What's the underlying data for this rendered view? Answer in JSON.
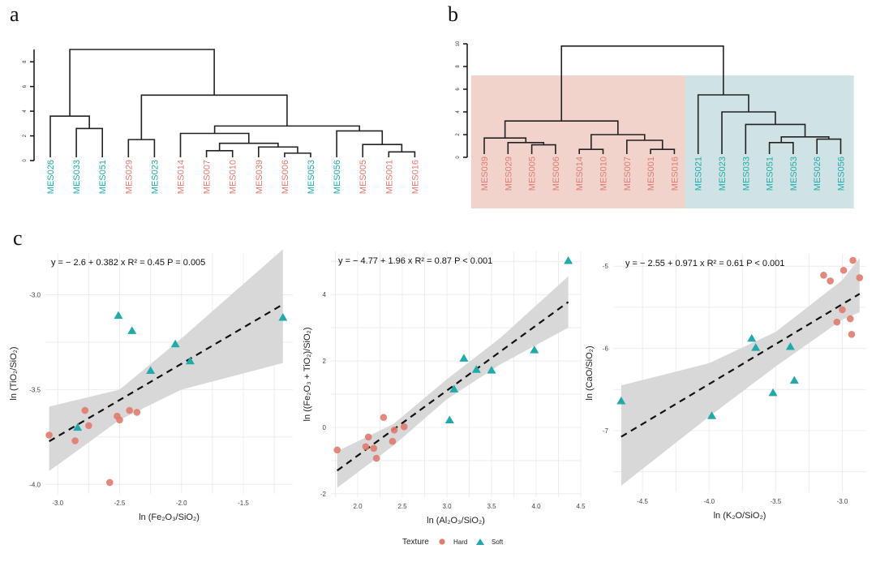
{
  "colors": {
    "hard": "#e07b6f",
    "soft": "#22aaaa",
    "ribbon": "#d6d6d6",
    "grid": "#ececec",
    "cluster_hard_bg": "#f1d3cc",
    "cluster_soft_bg": "#cfe3e5"
  },
  "panels": {
    "a": "a",
    "b": "b",
    "c": "c"
  },
  "chart_data": [
    {
      "id": "a",
      "type": "dendrogram",
      "yticks": [
        "0",
        "2",
        "4",
        "6",
        "8"
      ],
      "ylim": [
        0,
        9
      ],
      "leaves": [
        {
          "label": "MES026",
          "group": "soft"
        },
        {
          "label": "MES033",
          "group": "soft"
        },
        {
          "label": "MES051",
          "group": "soft"
        },
        {
          "label": "MES029",
          "group": "hard"
        },
        {
          "label": "MES023",
          "group": "soft"
        },
        {
          "label": "MES014",
          "group": "hard"
        },
        {
          "label": "MES007",
          "group": "hard"
        },
        {
          "label": "MES010",
          "group": "hard"
        },
        {
          "label": "MES039",
          "group": "hard"
        },
        {
          "label": "MES006",
          "group": "hard"
        },
        {
          "label": "MES053",
          "group": "soft"
        },
        {
          "label": "MES056",
          "group": "soft"
        },
        {
          "label": "MES005",
          "group": "hard"
        },
        {
          "label": "MES001",
          "group": "hard"
        },
        {
          "label": "MES016",
          "group": "hard"
        }
      ],
      "merges": [
        {
          "a": 1,
          "b": 2,
          "h": 2.6
        },
        {
          "a": 0,
          "b": "m0",
          "h": 3.6
        },
        {
          "a": 3,
          "b": 4,
          "h": 1.7
        },
        {
          "a": 6,
          "b": 7,
          "h": 0.8
        },
        {
          "a": 9,
          "b": 10,
          "h": 0.6
        },
        {
          "a": 8,
          "b": "m4",
          "h": 1.1
        },
        {
          "a": "m3",
          "b": "m5",
          "h": 1.4
        },
        {
          "a": 5,
          "b": "m6",
          "h": 2.2
        },
        {
          "a": 13,
          "b": 14,
          "h": 0.7
        },
        {
          "a": 12,
          "b": "m8",
          "h": 1.3
        },
        {
          "a": 11,
          "b": "m9",
          "h": 2.4
        },
        {
          "a": "m7",
          "b": "m10",
          "h": 2.8
        },
        {
          "a": "m2",
          "b": "m11",
          "h": 5.3
        },
        {
          "a": "m1",
          "b": "m12",
          "h": 9.0
        }
      ]
    },
    {
      "id": "b",
      "type": "dendrogram",
      "yticks": [
        "0",
        "2",
        "4",
        "6",
        "8",
        "10"
      ],
      "ylim": [
        0,
        10
      ],
      "clusters": [
        {
          "group": "hard",
          "from": 0,
          "to": 8
        },
        {
          "group": "soft",
          "from": 9,
          "to": 15
        }
      ],
      "leaves": [
        {
          "label": "MES039",
          "group": "hard"
        },
        {
          "label": "MES029",
          "group": "hard"
        },
        {
          "label": "MES005",
          "group": "hard"
        },
        {
          "label": "MES006",
          "group": "hard"
        },
        {
          "label": "MES014",
          "group": "hard"
        },
        {
          "label": "MES010",
          "group": "hard"
        },
        {
          "label": "MES007",
          "group": "hard"
        },
        {
          "label": "MES001",
          "group": "hard"
        },
        {
          "label": "MES016",
          "group": "hard"
        },
        {
          "label": "MES021",
          "group": "soft"
        },
        {
          "label": "MES023",
          "group": "soft"
        },
        {
          "label": "MES033",
          "group": "soft"
        },
        {
          "label": "MES051",
          "group": "soft"
        },
        {
          "label": "MES053",
          "group": "soft"
        },
        {
          "label": "MES026",
          "group": "soft"
        },
        {
          "label": "MES056",
          "group": "soft"
        }
      ],
      "merges": [
        {
          "a": 2,
          "b": 3,
          "h": 1.1
        },
        {
          "a": 1,
          "b": "m0",
          "h": 1.3
        },
        {
          "a": 0,
          "b": "m1",
          "h": 1.7
        },
        {
          "a": 4,
          "b": 5,
          "h": 0.7
        },
        {
          "a": 7,
          "b": 8,
          "h": 0.7
        },
        {
          "a": 6,
          "b": "m4",
          "h": 1.5
        },
        {
          "a": "m3",
          "b": "m5",
          "h": 2.0
        },
        {
          "a": "m2",
          "b": "m6",
          "h": 3.2
        },
        {
          "a": 12,
          "b": 13,
          "h": 1.3
        },
        {
          "a": 14,
          "b": 15,
          "h": 1.6
        },
        {
          "a": "m8",
          "b": "m9",
          "h": 1.8
        },
        {
          "a": 11,
          "b": "m10",
          "h": 2.9
        },
        {
          "a": 10,
          "b": "m11",
          "h": 4.0
        },
        {
          "a": 9,
          "b": "m12",
          "h": 5.5
        },
        {
          "a": "m7",
          "b": "m13",
          "h": 9.8
        }
      ]
    },
    {
      "id": "c1",
      "type": "scatter",
      "equation": "y = − 2.6 + 0.382 x   R² = 0.45   P = 0.005",
      "xlabel": "ln (Fe₂O₃/SiO₂)",
      "ylabel": "ln (TiO₂/SiO₂)",
      "xlim": [
        -3.1,
        -1.1
      ],
      "ylim": [
        -4.05,
        -2.78
      ],
      "xticks": [
        -3.0,
        -2.5,
        -2.0,
        -1.5
      ],
      "xtick_labels": [
        "-3.0",
        "-2.5",
        "-2.0",
        "-1.5"
      ],
      "yticks": [
        -4.0,
        -3.5,
        -3.0
      ],
      "ytick_labels": [
        "-4.0",
        "-3.5",
        "-3.0"
      ],
      "fit": {
        "intercept": -2.6,
        "slope": 0.382,
        "x_range": [
          -3.07,
          -1.18
        ],
        "ribbon_lo": [
          [
            -3.07,
            -3.93
          ],
          [
            -2.5,
            -3.66
          ],
          [
            -2.0,
            -3.5
          ],
          [
            -1.18,
            -3.36
          ]
        ],
        "ribbon_hi": [
          [
            -3.07,
            -3.59
          ],
          [
            -2.5,
            -3.5
          ],
          [
            -2.0,
            -3.23
          ],
          [
            -1.18,
            -2.76
          ]
        ]
      },
      "points": [
        {
          "x": -2.51,
          "y": -3.11,
          "group": "soft"
        },
        {
          "x": -2.4,
          "y": -3.19,
          "group": "soft"
        },
        {
          "x": -2.05,
          "y": -3.26,
          "group": "soft"
        },
        {
          "x": -1.93,
          "y": -3.35,
          "group": "soft"
        },
        {
          "x": -2.25,
          "y": -3.4,
          "group": "soft"
        },
        {
          "x": -1.18,
          "y": -3.12,
          "group": "soft"
        },
        {
          "x": -2.84,
          "y": -3.7,
          "group": "soft"
        },
        {
          "x": -3.07,
          "y": -3.74,
          "group": "hard"
        },
        {
          "x": -2.86,
          "y": -3.77,
          "group": "hard"
        },
        {
          "x": -2.78,
          "y": -3.61,
          "group": "hard"
        },
        {
          "x": -2.75,
          "y": -3.69,
          "group": "hard"
        },
        {
          "x": -2.52,
          "y": -3.64,
          "group": "hard"
        },
        {
          "x": -2.5,
          "y": -3.66,
          "group": "hard"
        },
        {
          "x": -2.42,
          "y": -3.61,
          "group": "hard"
        },
        {
          "x": -2.36,
          "y": -3.62,
          "group": "hard"
        },
        {
          "x": -2.58,
          "y": -3.99,
          "group": "hard"
        }
      ]
    },
    {
      "id": "c2",
      "type": "scatter",
      "equation": "y = − 4.77 + 1.96 x   R² = 0.87   P < 0.001",
      "xlabel": "ln (Al₂O₃/SiO₂)",
      "ylabel": "ln ((Fe₂O₃ + TiO₂)/SiO₂)",
      "xlim": [
        1.7,
        4.5
      ],
      "ylim": [
        -2.1,
        5.3
      ],
      "xticks": [
        2.0,
        2.5,
        3.0,
        3.5,
        4.0,
        4.5
      ],
      "xtick_labels": [
        "2.0",
        "2.5",
        "3.0",
        "3.5",
        "4.0",
        "4.5"
      ],
      "yticks": [
        -2,
        0,
        2,
        4
      ],
      "ytick_labels": [
        "-2",
        "0",
        "2",
        "4"
      ],
      "fit": {
        "intercept": -4.77,
        "slope": 1.96,
        "x_range": [
          1.77,
          4.36
        ],
        "ribbon_lo": [
          [
            1.77,
            -1.82
          ],
          [
            2.4,
            -0.55
          ],
          [
            3.0,
            0.85
          ],
          [
            3.6,
            1.9
          ],
          [
            4.36,
            3.0
          ]
        ],
        "ribbon_hi": [
          [
            1.77,
            -0.72
          ],
          [
            2.4,
            0.1
          ],
          [
            3.0,
            1.45
          ],
          [
            3.6,
            2.7
          ],
          [
            4.36,
            4.55
          ]
        ]
      },
      "points": [
        {
          "x": 1.77,
          "y": -0.68,
          "group": "hard"
        },
        {
          "x": 2.29,
          "y": 0.3,
          "group": "hard"
        },
        {
          "x": 2.12,
          "y": -0.29,
          "group": "hard"
        },
        {
          "x": 2.09,
          "y": -0.58,
          "group": "hard"
        },
        {
          "x": 2.18,
          "y": -0.63,
          "group": "hard"
        },
        {
          "x": 2.21,
          "y": -0.93,
          "group": "hard"
        },
        {
          "x": 2.39,
          "y": -0.42,
          "group": "hard"
        },
        {
          "x": 2.41,
          "y": -0.08,
          "group": "hard"
        },
        {
          "x": 2.52,
          "y": 0.02,
          "group": "hard"
        },
        {
          "x": 3.03,
          "y": 0.22,
          "group": "soft"
        },
        {
          "x": 3.08,
          "y": 1.15,
          "group": "soft"
        },
        {
          "x": 3.19,
          "y": 2.08,
          "group": "soft"
        },
        {
          "x": 3.33,
          "y": 1.74,
          "group": "soft"
        },
        {
          "x": 3.5,
          "y": 1.72,
          "group": "soft"
        },
        {
          "x": 3.98,
          "y": 2.33,
          "group": "soft"
        },
        {
          "x": 4.36,
          "y": 5.02,
          "group": "soft"
        }
      ]
    },
    {
      "id": "c3",
      "type": "scatter",
      "equation": "y = − 2.55 + 0.971 x   R² = 0.61   P < 0.001",
      "xlabel": "ln (K₂O/SiO₂)",
      "ylabel": "ln (CaO/SiO₂)",
      "xlim": [
        -4.72,
        -2.82
      ],
      "ylim": [
        -7.75,
        -4.85
      ],
      "xticks": [
        -4.5,
        -4.0,
        -3.5,
        -3.0
      ],
      "xtick_labels": [
        "-4.5",
        "-4.0",
        "-3.5",
        "-3.0"
      ],
      "yticks": [
        -7,
        -6,
        -5
      ],
      "ytick_labels": [
        "-7",
        "-6",
        "-5"
      ],
      "fit": {
        "intercept": -2.55,
        "slope": 0.971,
        "x_range": [
          -4.66,
          -2.87
        ],
        "ribbon_lo": [
          [
            -4.66,
            -7.67
          ],
          [
            -4.0,
            -6.83
          ],
          [
            -3.5,
            -6.22
          ],
          [
            -3.0,
            -5.65
          ],
          [
            -2.87,
            -5.56
          ]
        ],
        "ribbon_hi": [
          [
            -4.66,
            -6.45
          ],
          [
            -4.0,
            -6.18
          ],
          [
            -3.5,
            -5.8
          ],
          [
            -3.0,
            -5.17
          ],
          [
            -2.87,
            -4.9
          ]
        ]
      },
      "points": [
        {
          "x": -3.14,
          "y": -5.11,
          "group": "hard"
        },
        {
          "x": -3.09,
          "y": -5.18,
          "group": "hard"
        },
        {
          "x": -2.99,
          "y": -5.05,
          "group": "hard"
        },
        {
          "x": -2.92,
          "y": -4.93,
          "group": "hard"
        },
        {
          "x": -2.87,
          "y": -5.14,
          "group": "hard"
        },
        {
          "x": -3.0,
          "y": -5.53,
          "group": "hard"
        },
        {
          "x": -2.94,
          "y": -5.64,
          "group": "hard"
        },
        {
          "x": -3.04,
          "y": -5.68,
          "group": "hard"
        },
        {
          "x": -2.93,
          "y": -5.83,
          "group": "hard"
        },
        {
          "x": -3.68,
          "y": -5.88,
          "group": "soft"
        },
        {
          "x": -3.65,
          "y": -5.99,
          "group": "soft"
        },
        {
          "x": -3.39,
          "y": -5.98,
          "group": "soft"
        },
        {
          "x": -3.36,
          "y": -6.39,
          "group": "soft"
        },
        {
          "x": -3.52,
          "y": -6.54,
          "group": "soft"
        },
        {
          "x": -4.66,
          "y": -6.64,
          "group": "soft"
        },
        {
          "x": -3.98,
          "y": -6.82,
          "group": "soft"
        }
      ]
    }
  ],
  "legend": {
    "title": "Texture",
    "items": [
      {
        "label": "Hard",
        "group": "hard",
        "shape": "circle"
      },
      {
        "label": "Soft",
        "group": "soft",
        "shape": "triangle"
      }
    ]
  }
}
